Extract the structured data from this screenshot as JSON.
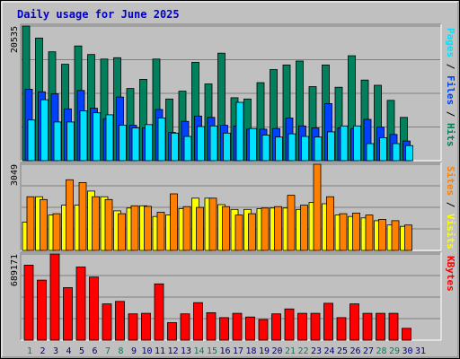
{
  "title": "Daily usage for June 2025",
  "colors": {
    "hits": "#00805c",
    "files": "#0040ff",
    "pages": "#00e0ff",
    "visits": "#ffff00",
    "sites": "#ff8000",
    "kbytes": "#ff0000",
    "weekend_day": "#00805c",
    "weekday_day": "#000080"
  },
  "chart_data": [
    {
      "type": "bar",
      "panel": "top",
      "y_tick_label": "20535",
      "ylim": [
        0,
        20535
      ],
      "categories": [
        "1",
        "2",
        "3",
        "4",
        "5",
        "6",
        "7",
        "8",
        "9",
        "10",
        "11",
        "12",
        "13",
        "14",
        "15",
        "16",
        "17",
        "18",
        "19",
        "20",
        "21",
        "22",
        "23",
        "24",
        "25",
        "26",
        "27",
        "28",
        "29",
        "30",
        "31"
      ],
      "legend": [
        "Pages",
        "/",
        "Files",
        "/",
        "Hits"
      ],
      "series": [
        {
          "name": "Hits",
          "values": [
            20535,
            18700,
            16600,
            14700,
            17500,
            16200,
            15500,
            15700,
            11000,
            12400,
            15500,
            9400,
            10600,
            15000,
            11700,
            16400,
            9600,
            9400,
            11900,
            13900,
            14600,
            15200,
            11300,
            14600,
            11200,
            16000,
            12300,
            11500,
            9200,
            6600,
            0
          ]
        },
        {
          "name": "Files",
          "values": [
            10900,
            10500,
            10200,
            7900,
            10700,
            8000,
            6400,
            9700,
            5400,
            5000,
            7800,
            4300,
            6000,
            6800,
            6600,
            5400,
            5300,
            4800,
            4800,
            4900,
            6500,
            5300,
            5000,
            8700,
            5000,
            4900,
            6300,
            5100,
            4000,
            3000,
            0
          ]
        },
        {
          "name": "Pages",
          "values": [
            6200,
            9300,
            5900,
            5900,
            7600,
            7300,
            7000,
            5400,
            5000,
            5500,
            6500,
            4200,
            3700,
            5200,
            5300,
            4200,
            8900,
            4900,
            3900,
            3600,
            4100,
            3700,
            3600,
            4400,
            5300,
            5300,
            2600,
            3500,
            2600,
            2300,
            0
          ]
        }
      ]
    },
    {
      "type": "bar",
      "panel": "middle",
      "y_tick_label": "3049",
      "ylim": [
        0,
        3049
      ],
      "categories": [
        "1",
        "2",
        "3",
        "4",
        "5",
        "6",
        "7",
        "8",
        "9",
        "10",
        "11",
        "12",
        "13",
        "14",
        "15",
        "16",
        "17",
        "18",
        "19",
        "20",
        "21",
        "22",
        "23",
        "24",
        "25",
        "26",
        "27",
        "28",
        "29",
        "30",
        "31"
      ],
      "legend": [
        "Sites",
        "/",
        "Visits"
      ],
      "series": [
        {
          "name": "Visits",
          "values": [
            1000,
            1900,
            1250,
            1600,
            1600,
            2100,
            1900,
            1400,
            1500,
            1580,
            1200,
            1250,
            1480,
            1850,
            1850,
            1620,
            1450,
            1450,
            1480,
            1500,
            1500,
            1450,
            1700,
            1650,
            1250,
            1200,
            1150,
            1050,
            900,
            850,
            0
          ]
        },
        {
          "name": "Sites",
          "values": [
            1900,
            1800,
            1300,
            2500,
            2400,
            1900,
            1800,
            1300,
            1580,
            1560,
            1350,
            2000,
            1550,
            1520,
            1850,
            1550,
            1250,
            1300,
            1500,
            1550,
            1950,
            1600,
            3049,
            1900,
            1300,
            1320,
            1250,
            1100,
            1050,
            900,
            0
          ]
        }
      ]
    },
    {
      "type": "bar",
      "panel": "bottom",
      "y_tick_label": "689171",
      "ylim": [
        0,
        689171
      ],
      "categories": [
        "1",
        "2",
        "3",
        "4",
        "5",
        "6",
        "7",
        "8",
        "9",
        "10",
        "11",
        "12",
        "13",
        "14",
        "15",
        "16",
        "17",
        "18",
        "19",
        "20",
        "21",
        "22",
        "23",
        "24",
        "25",
        "26",
        "27",
        "28",
        "29",
        "30",
        "31"
      ],
      "legend": [
        "KBytes"
      ],
      "series": [
        {
          "name": "KBytes",
          "values": [
            600000,
            480000,
            689171,
            420000,
            585000,
            505000,
            290000,
            310000,
            210000,
            215000,
            450000,
            140000,
            210000,
            300000,
            220000,
            180000,
            215000,
            185000,
            165000,
            210000,
            250000,
            215000,
            215000,
            295000,
            180000,
            290000,
            215000,
            215000,
            215000,
            95000,
            0
          ]
        }
      ]
    }
  ],
  "weekend_days": [
    1,
    7,
    8,
    14,
    15,
    21,
    22,
    28,
    29
  ]
}
